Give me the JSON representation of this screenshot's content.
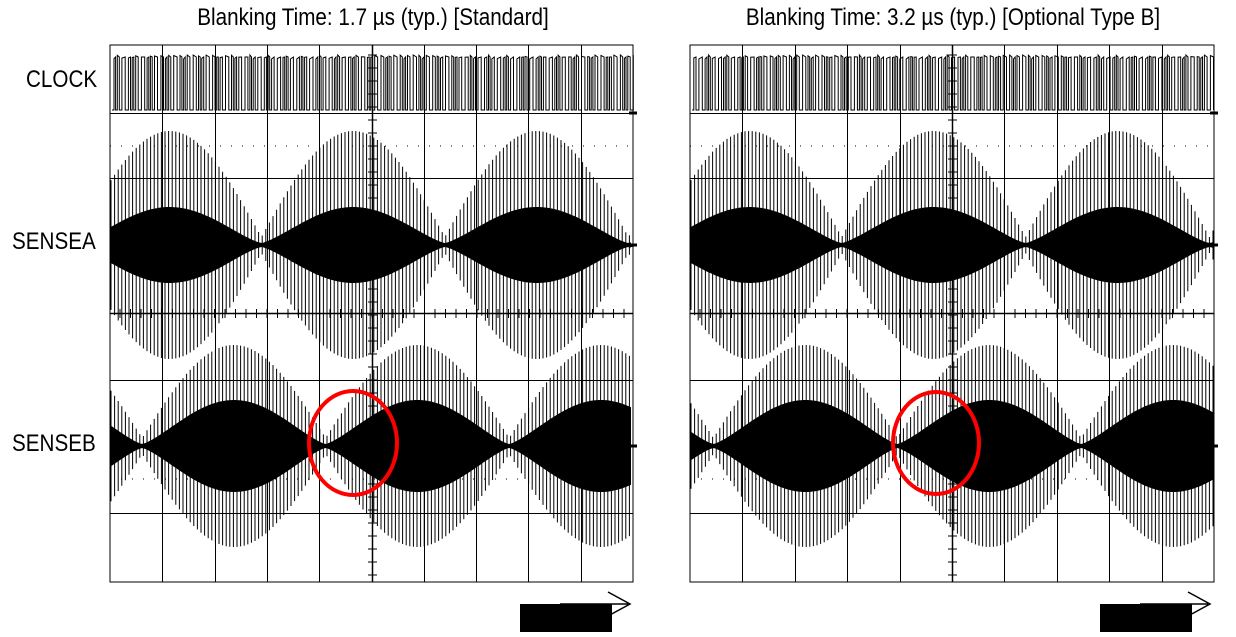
{
  "chart_data": [
    {
      "type": "line",
      "title": "Blanking Time: 1.7 µs (typ.) [Standard]",
      "series": [
        {
          "name": "CLOCK"
        },
        {
          "name": "SENSEA"
        },
        {
          "name": "SENSEB"
        }
      ],
      "grid": true,
      "grid_divisions": {
        "x": 10,
        "y": 8
      },
      "annotation": "red-circle"
    },
    {
      "type": "line",
      "title": "Blanking Time: 3.2 µs (typ.) [Optional Type B]",
      "series": [
        {
          "name": "CLOCK"
        },
        {
          "name": "SENSEA"
        },
        {
          "name": "SENSEB"
        }
      ],
      "grid": true,
      "grid_divisions": {
        "x": 10,
        "y": 8
      },
      "annotation": "red-circle"
    }
  ],
  "colors": {
    "trace": "#000000",
    "grid": "#000000",
    "annotation": "#ff0000"
  }
}
